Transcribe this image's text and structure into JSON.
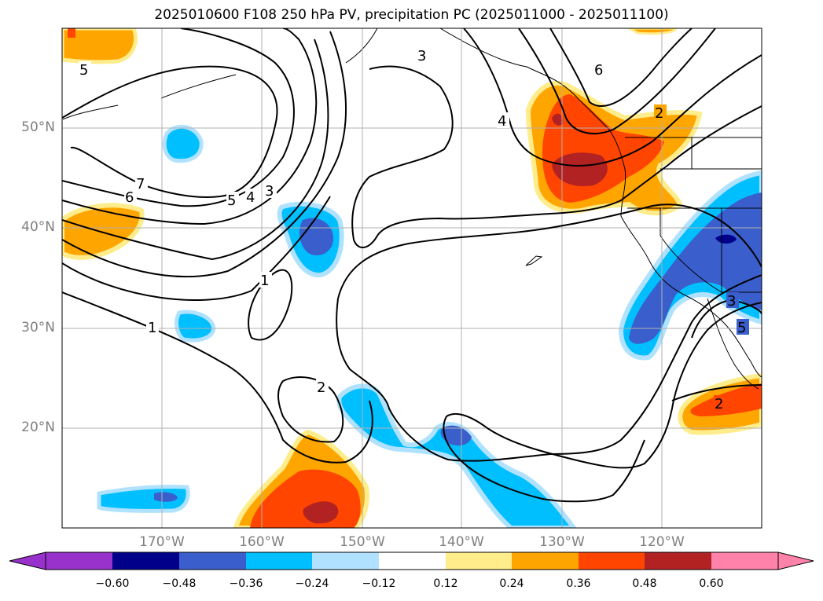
{
  "title": "2025010600 F108 250 hPa PV, precipitation PC (2025011000 - 2025011100)",
  "latitudes": [
    {
      "label": "50°N",
      "value": 50
    },
    {
      "label": "40°N",
      "value": 40
    },
    {
      "label": "30°N",
      "value": 30
    },
    {
      "label": "20°N",
      "value": 20
    }
  ],
  "longitudes": [
    {
      "label": "170°W",
      "value": -170
    },
    {
      "label": "160°W",
      "value": -160
    },
    {
      "label": "150°W",
      "value": -150
    },
    {
      "label": "140°W",
      "value": -140
    },
    {
      "label": "130°W",
      "value": -130
    },
    {
      "label": "120°W",
      "value": -120
    }
  ],
  "colorbar": {
    "ticks": [
      "−0.60",
      "−0.48",
      "−0.36",
      "−0.24",
      "−0.12",
      "0.12",
      "0.24",
      "0.36",
      "0.48",
      "0.60"
    ],
    "colors": [
      "#9932cc",
      "#00008b",
      "#3a5fcd",
      "#00bfff",
      "#b0e2ff",
      "#ffffff",
      "#ffec8b",
      "#ffa500",
      "#ff4500",
      "#b22222",
      "#ff82ab"
    ]
  },
  "contour_labels": [
    "1",
    "1",
    "2",
    "2",
    "2",
    "3",
    "3",
    "3",
    "4",
    "4",
    "5",
    "5",
    "5",
    "6",
    "6",
    "7"
  ]
}
